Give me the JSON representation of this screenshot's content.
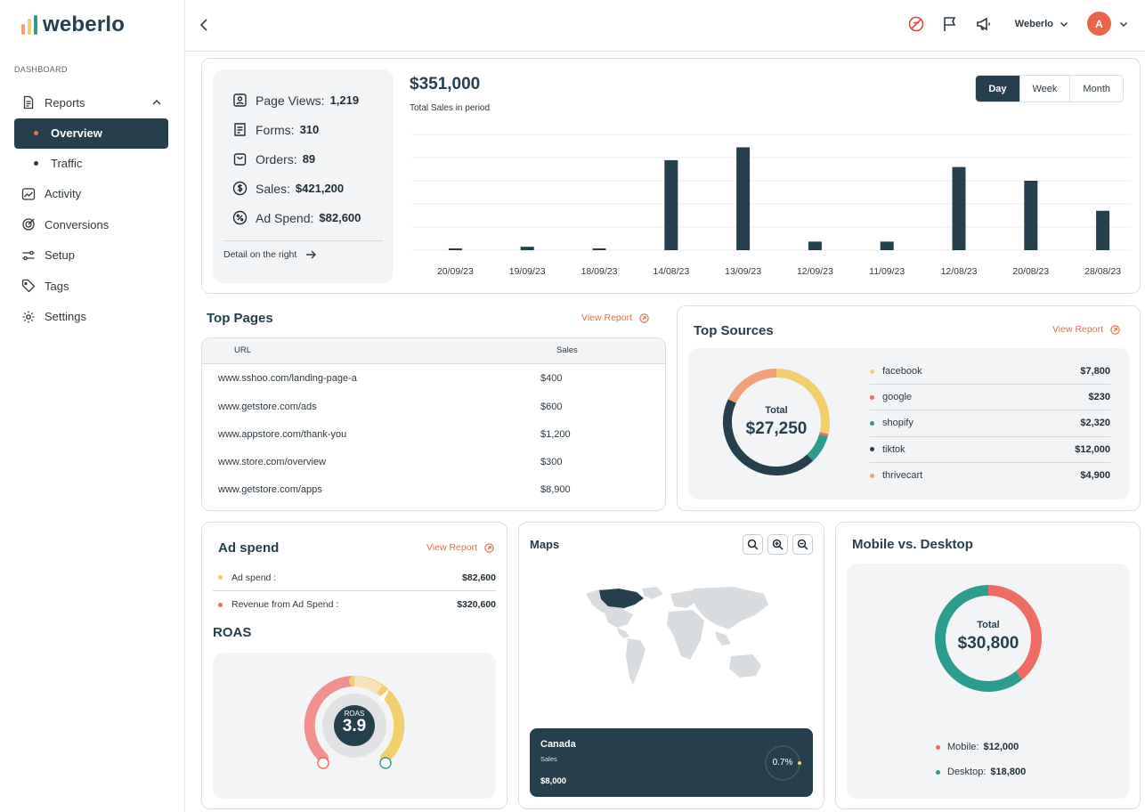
{
  "app": {
    "logo_text": "weberlo",
    "colors": {
      "primary": "#263f4d",
      "accent": "#e8754f",
      "teal": "#2a9d8f",
      "yellow": "#f2cf6c",
      "red": "#ef6b63",
      "peach": "#f1a07a"
    }
  },
  "sidebar": {
    "section_label": "DASHBOARD",
    "items": [
      {
        "label": "Reports",
        "icon": "file-icon",
        "expanded": true
      },
      {
        "label": "Overview",
        "sub": true,
        "active": true
      },
      {
        "label": "Traffic",
        "sub": true
      },
      {
        "label": "Activity",
        "icon": "chart-line-icon"
      },
      {
        "label": "Conversions",
        "icon": "target-icon"
      },
      {
        "label": "Setup",
        "icon": "sliders-icon"
      },
      {
        "label": "Tags",
        "icon": "tag-icon"
      },
      {
        "label": "Settings",
        "icon": "gear-icon"
      }
    ]
  },
  "header": {
    "user_name": "Weberlo",
    "avatar_initial": "A"
  },
  "summary": {
    "stats": [
      {
        "label": "Page Views:",
        "value": "1,219",
        "icon": "page-views-icon"
      },
      {
        "label": "Forms:",
        "value": "310",
        "icon": "forms-icon"
      },
      {
        "label": "Orders:",
        "value": "89",
        "icon": "orders-icon"
      },
      {
        "label": "Sales:",
        "value": "$421,200",
        "icon": "dollar-icon"
      },
      {
        "label": "Ad Spend:",
        "value": "$82,600",
        "icon": "percent-icon"
      }
    ],
    "detail_link": "Detail on the right",
    "total": "$351,000",
    "total_label": "Total Sales in period",
    "periods": [
      "Day",
      "Week",
      "Month"
    ],
    "active_period": "Day"
  },
  "chart_data": {
    "type": "bar",
    "categories": [
      "20/09/23",
      "19/09/23",
      "18/09/23",
      "14/08/23",
      "13/09/23",
      "12/09/23",
      "11/09/23",
      "12/08/23",
      "20/08/23",
      "28/08/23"
    ],
    "values": [
      2,
      4,
      2,
      105,
      120,
      10,
      10,
      97,
      81,
      46
    ],
    "ylim": [
      0,
      135
    ],
    "grid": true,
    "title": "",
    "xlabel": "",
    "ylabel": ""
  },
  "top_pages": {
    "title": "Top Pages",
    "view_report": "View Report",
    "columns": [
      "URL",
      "Sales"
    ],
    "rows": [
      {
        "url": "www.sshoo.com/landing-page-a",
        "sales": "$400"
      },
      {
        "url": "www.getstore.com/ads",
        "sales": "$600"
      },
      {
        "url": "www.appstore.com/thank-you",
        "sales": "$1,200"
      },
      {
        "url": "www.store.com/overview",
        "sales": "$300"
      },
      {
        "url": "www.getstore.com/apps",
        "sales": "$8,900"
      }
    ]
  },
  "top_sources": {
    "title": "Top Sources",
    "view_report": "View Report",
    "total_label": "Total",
    "total": "$27,250",
    "rows": [
      {
        "name": "facebook",
        "value": "$7,800",
        "color": "#f2cf6c"
      },
      {
        "name": "google",
        "value": "$230",
        "color": "#ef6b63"
      },
      {
        "name": "shopify",
        "value": "$2,320",
        "color": "#2a9d8f"
      },
      {
        "name": "tiktok",
        "value": "$12,000",
        "color": "#263f4d"
      },
      {
        "name": "thrivecart",
        "value": "$4,900",
        "color": "#f1a07a"
      }
    ]
  },
  "ad_spend": {
    "title": "Ad spend",
    "view_report": "View Report",
    "rows": [
      {
        "label": "Ad spend :",
        "value": "$82,600",
        "color": "#f2cf6c"
      },
      {
        "label": "Revenue from Ad Spend :",
        "value": "$320,600",
        "color": "#ef6b63"
      }
    ],
    "roas_title": "ROAS",
    "roas_label": "ROAS",
    "roas_value": "3.9"
  },
  "maps": {
    "title": "Maps",
    "country": "Canada",
    "metric_label": "Sales",
    "metric_value": "$8,000",
    "percent": "0.7%"
  },
  "mobile_desktop": {
    "title": "Mobile vs. Desktop",
    "total_label": "Total",
    "total": "$30,800",
    "rows": [
      {
        "label": "Mobile:",
        "value": "$12,000",
        "color": "#ef6b63"
      },
      {
        "label": "Desktop:",
        "value": "$18,800",
        "color": "#2a9d8f"
      }
    ]
  }
}
